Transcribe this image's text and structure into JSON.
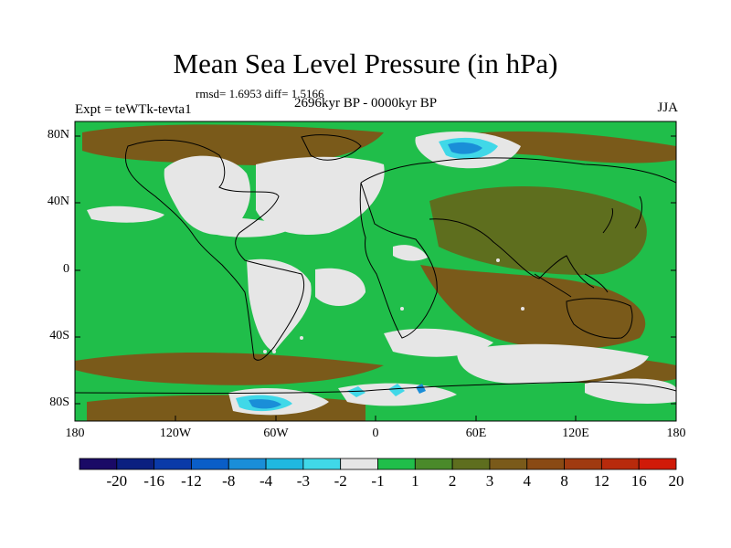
{
  "title": "Mean Sea Level Pressure (in hPa)",
  "stats_line": "rmsd= 1.6953 diff= 1.5166",
  "period_line": "2696kyr BP - 0000kyr BP",
  "experiment_label": "Expt = teWTk-tevta1",
  "season": "JJA",
  "y_axis_ticks": [
    "80N",
    "40N",
    "0",
    "40S",
    "80S"
  ],
  "x_axis_ticks": [
    "180",
    "120W",
    "60W",
    "0",
    "60E",
    "120E",
    "180"
  ],
  "colorbar": {
    "colors": [
      "#1a0a66",
      "#0b2080",
      "#0a3aa8",
      "#0a5ec8",
      "#1a8ed8",
      "#20b8e0",
      "#40d8e8",
      "#e6e6e6",
      "#20be4a",
      "#4a8a2a",
      "#5e6e1e",
      "#7a5a1a",
      "#8a4a14",
      "#a03a10",
      "#b82a0c",
      "#d01a08"
    ],
    "labels": [
      "-20",
      "-16",
      "-12",
      "-8",
      "-4",
      "-3",
      "-2",
      "-1",
      "1",
      "2",
      "3",
      "4",
      "8",
      "12",
      "16",
      "20"
    ]
  },
  "legend_colors": {
    "neutral": "#e6e6e6",
    "green": "#20be4a",
    "olive": "#5e6e1e",
    "brown": "#7a5a1a",
    "cyan": "#40d8e8",
    "blue": "#1a8ed8"
  }
}
